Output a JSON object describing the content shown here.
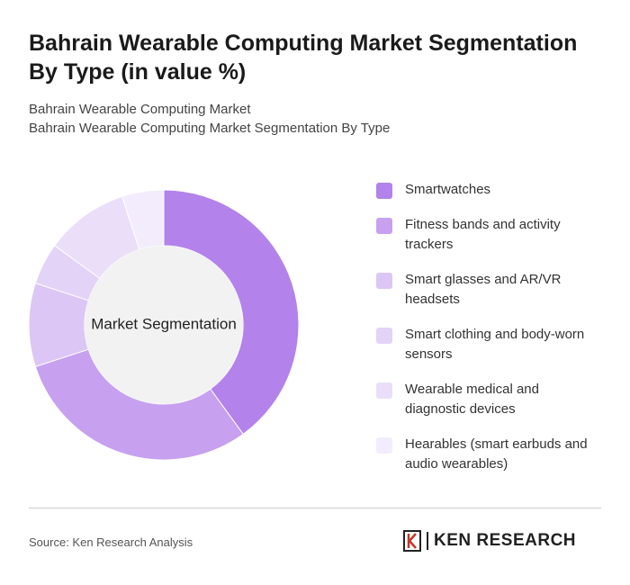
{
  "chart_data": {
    "type": "donut",
    "title": "Bahrain Wearable Computing Market Segmentation By Type (in value %)",
    "subtitle": [
      "Bahrain Wearable Computing Market",
      "Bahrain Wearable Computing Market Segmentation By Type"
    ],
    "center_label": "Market Segmentation",
    "categories": [
      "Smartwatches",
      "Fitness bands and activity trackers",
      "Smart glasses and AR/VR headsets",
      "Smart clothing and body-worn sensors",
      "Wearable medical and diagnostic devices",
      "Hearables (smart earbuds and audio wearables)"
    ],
    "values": [
      40,
      30,
      10,
      5,
      10,
      5
    ],
    "colors": [
      "#b382ea",
      "#c7a0ef",
      "#dcc6f5",
      "#e3d3f7",
      "#eadef9",
      "#f3ecfc"
    ],
    "source": "Source: Ken Research Analysis",
    "logo": "KEN RESEARCH"
  }
}
